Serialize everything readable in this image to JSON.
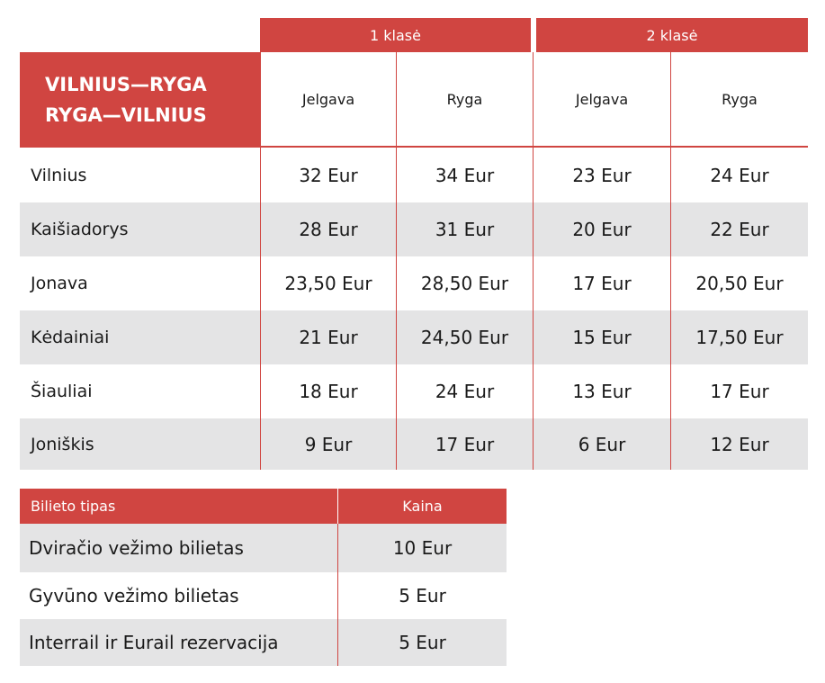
{
  "main_table": {
    "group_headers": [
      "1 klasė",
      "2 klasė"
    ],
    "title_lines": [
      "VILNIUS—RYGA",
      "RYGA—VILNIUS"
    ],
    "columns": [
      "Jelgava",
      "Ryga",
      "Jelgava",
      "Ryga"
    ],
    "rows": [
      [
        "Vilnius",
        "32 Eur",
        "34 Eur",
        "23 Eur",
        "24 Eur"
      ],
      [
        "Kaišiadorys",
        "28 Eur",
        "31 Eur",
        "20 Eur",
        "22 Eur"
      ],
      [
        "Jonava",
        "23,50 Eur",
        "28,50 Eur",
        "17 Eur",
        "20,50 Eur"
      ],
      [
        "Kėdainiai",
        "21 Eur",
        "24,50 Eur",
        "15 Eur",
        "17,50 Eur"
      ],
      [
        "Šiauliai",
        "18 Eur",
        "24 Eur",
        "13 Eur",
        "17 Eur"
      ],
      [
        "Joniškis",
        "9 Eur",
        "17 Eur",
        "6 Eur",
        "12 Eur"
      ]
    ]
  },
  "ticket_table": {
    "headers": [
      "Bilieto tipas",
      "Kaina"
    ],
    "rows": [
      [
        "Dviračio vežimo bilietas",
        "10 Eur"
      ],
      [
        "Gyvūno vežimo bilietas",
        "5 Eur"
      ],
      [
        "Interrail ir Eurail rezervacija",
        "5 Eur"
      ]
    ]
  }
}
